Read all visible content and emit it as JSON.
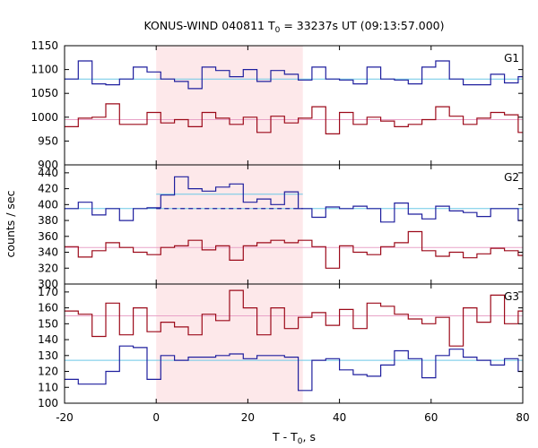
{
  "chart_data": {
    "type": "line",
    "title": {
      "main": "KONUS-WIND 040811 T",
      "sub": "0",
      "rest": " = 33237s UT (09:13:57.000)"
    },
    "xlabel": {
      "main": "T - T",
      "sub": "0",
      "rest": ", s"
    },
    "ylabel": "counts / sec",
    "xlim": [
      -20,
      80
    ],
    "xticks": [
      "-20",
      "0",
      "20",
      "40",
      "60",
      "80"
    ],
    "shaded_interval": [
      0,
      32
    ],
    "colors": {
      "blue": "#1f1f9e",
      "red": "#9c0a1a",
      "cyan": "#6cc8e6",
      "pink": "#e8a3c8",
      "shade": "#fde8ea"
    },
    "panels": [
      {
        "label": "G1",
        "ylim": [
          900,
          1150
        ],
        "yticks": [
          "900",
          "950",
          "1000",
          "1050",
          "1100",
          "1150"
        ],
        "bin_edges": [
          -20,
          -17,
          -14,
          -11,
          -8,
          -5,
          -2,
          1,
          4,
          7,
          10,
          13,
          16,
          19,
          22,
          25,
          28,
          31,
          34,
          37,
          40,
          43,
          46,
          49,
          52,
          55,
          58,
          61,
          64,
          67,
          70,
          73,
          76,
          79,
          80
        ],
        "series": [
          {
            "color": "blue",
            "values": [
              1080,
              1118,
              1070,
              1068,
              1080,
              1105,
              1095,
              1080,
              1075,
              1060,
              1105,
              1098,
              1085,
              1100,
              1075,
              1098,
              1090,
              1078,
              1105,
              1080,
              1078,
              1070,
              1105,
              1080,
              1078,
              1070,
              1105,
              1118,
              1080,
              1068,
              1068,
              1090,
              1072,
              1085
            ]
          },
          {
            "color": "red",
            "values": [
              980,
              998,
              1000,
              1028,
              985,
              985,
              1010,
              988,
              995,
              980,
              1010,
              998,
              985,
              1000,
              968,
              1002,
              988,
              998,
              1022,
              965,
              1010,
              985,
              1000,
              992,
              980,
              985,
              995,
              1022,
              1002,
              985,
              998,
              1010,
              1005,
              968
            ]
          }
        ],
        "fits": [
          {
            "color": "cyan",
            "y": 1080
          },
          {
            "color": "pink",
            "y": 995
          }
        ]
      },
      {
        "label": "G2",
        "ylim": [
          300,
          450
        ],
        "yticks": [
          "300",
          "320",
          "340",
          "360",
          "380",
          "400",
          "420",
          "440"
        ],
        "bin_edges": [
          -20,
          -17,
          -14,
          -11,
          -8,
          -5,
          -2,
          1,
          4,
          7,
          10,
          13,
          16,
          19,
          22,
          25,
          28,
          31,
          34,
          37,
          40,
          43,
          46,
          49,
          52,
          55,
          58,
          61,
          64,
          67,
          70,
          73,
          76,
          79,
          80
        ],
        "series": [
          {
            "color": "blue",
            "values": [
              395,
              403,
              387,
              395,
              380,
              395,
              396,
              412,
              435,
              420,
              417,
              422,
              426,
              403,
              407,
              400,
              416,
              395,
              384,
              397,
              395,
              398,
              395,
              378,
              402,
              388,
              382,
              398,
              392,
              390,
              385,
              395,
              395,
              380
            ]
          },
          {
            "color": "red",
            "values": [
              347,
              334,
              342,
              352,
              346,
              340,
              337,
              346,
              348,
              355,
              343,
              348,
              330,
              348,
              352,
              355,
              352,
              355,
              347,
              320,
              348,
              340,
              337,
              347,
              352,
              366,
              342,
              335,
              340,
              333,
              338,
              345,
              342,
              336
            ]
          }
        ],
        "fits": [
          {
            "color": "cyan",
            "y": 395
          },
          {
            "color": "cyan",
            "y": 413,
            "x": [
              0,
              32
            ]
          },
          {
            "color": "blue",
            "y": 395,
            "x": [
              0,
              32
            ],
            "dashed": true
          },
          {
            "color": "pink",
            "y": 346
          }
        ]
      },
      {
        "label": "G3",
        "ylim": [
          100,
          175
        ],
        "yticks": [
          "100",
          "110",
          "120",
          "130",
          "140",
          "150",
          "160",
          "170"
        ],
        "bin_edges": [
          -20,
          -17,
          -14,
          -11,
          -8,
          -5,
          -2,
          1,
          4,
          7,
          10,
          13,
          16,
          19,
          22,
          25,
          28,
          31,
          34,
          37,
          40,
          43,
          46,
          49,
          52,
          55,
          58,
          61,
          64,
          67,
          70,
          73,
          76,
          79,
          80
        ],
        "series": [
          {
            "color": "red",
            "values": [
              158,
              156,
              142,
              163,
              143,
              160,
              145,
              151,
              148,
              143,
              156,
              152,
              171,
              160,
              143,
              160,
              147,
              154,
              157,
              149,
              159,
              147,
              163,
              161,
              156,
              153,
              150,
              154,
              136,
              160,
              151,
              168,
              150,
              158
            ]
          },
          {
            "color": "blue",
            "values": [
              115,
              112,
              112,
              120,
              136,
              135,
              115,
              130,
              127,
              129,
              129,
              130,
              131,
              128,
              130,
              130,
              129,
              108,
              127,
              128,
              121,
              118,
              117,
              124,
              133,
              128,
              116,
              130,
              134,
              129,
              127,
              124,
              128,
              120
            ]
          }
        ],
        "fits": [
          {
            "color": "pink",
            "y": 155
          },
          {
            "color": "cyan",
            "y": 127
          }
        ]
      }
    ]
  }
}
